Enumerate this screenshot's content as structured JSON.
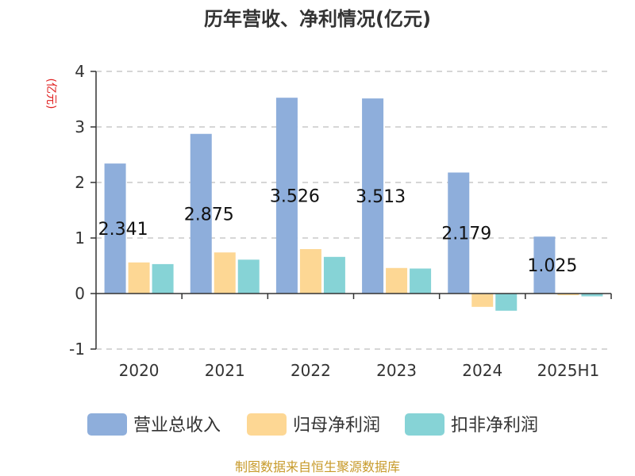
{
  "title": "历年营收、净利情况(亿元)",
  "source": "制图数据来自恒生聚源数据库",
  "chart_data": {
    "type": "bar",
    "title": "历年营收、净利情况(亿元)",
    "ylabel": "(亿元)",
    "xlabel": "",
    "ylim": [
      -1,
      4
    ],
    "yticks": [
      -1,
      0,
      1,
      2,
      3,
      4
    ],
    "grid": true,
    "legend_position": "bottom",
    "categories": [
      "2020",
      "2021",
      "2022",
      "2023",
      "2024",
      "2025H1"
    ],
    "series": [
      {
        "name": "营业总收入",
        "color": "#8eaedb",
        "values": [
          2.341,
          2.875,
          3.526,
          3.513,
          2.179,
          1.025
        ],
        "labels": [
          "2.341",
          "2.875",
          "3.526",
          "3.513",
          "2.179",
          "1.025"
        ]
      },
      {
        "name": "归母净利润",
        "color": "#fdd794",
        "values": [
          0.56,
          0.74,
          0.8,
          0.46,
          -0.24,
          -0.03
        ]
      },
      {
        "name": "扣非净利润",
        "color": "#86d3d6",
        "values": [
          0.53,
          0.61,
          0.66,
          0.45,
          -0.31,
          -0.05
        ]
      }
    ]
  }
}
